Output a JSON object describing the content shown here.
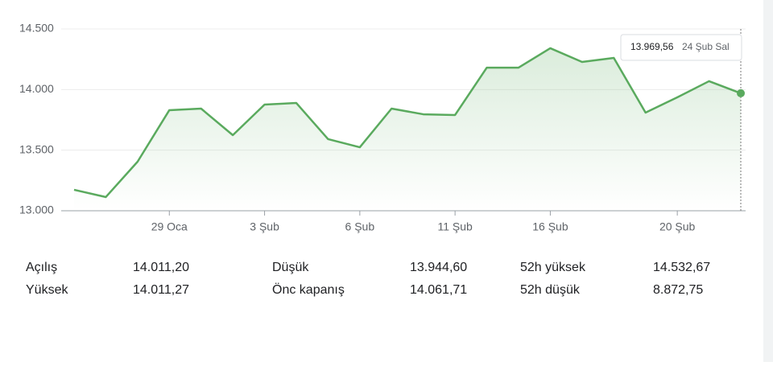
{
  "chart_data": {
    "type": "line",
    "categories": [
      null,
      null,
      null,
      "29 Oca",
      null,
      null,
      "3 Şub",
      null,
      null,
      "6 Şub",
      null,
      null,
      "11 Şub",
      null,
      null,
      "16 Şub",
      null,
      null,
      null,
      "20 Şub",
      null,
      null
    ],
    "values": [
      13173,
      13113,
      13405,
      13830,
      13843,
      13624,
      13876,
      13889,
      13591,
      13524,
      13843,
      13796,
      13790,
      14181,
      14181,
      14341,
      14228,
      14261,
      13810,
      13936,
      14069,
      13969.56
    ],
    "color": "#5aaa5e",
    "ylim": [
      13000,
      14500
    ],
    "yticks": [
      {
        "value": 13000,
        "label": "13.000"
      },
      {
        "value": 13500,
        "label": "13.500"
      },
      {
        "value": 14000,
        "label": "14.000"
      },
      {
        "value": 14500,
        "label": "14.500"
      }
    ],
    "grid": true,
    "tooltip": {
      "value": "13.969,56",
      "date": "24 Şub Sal"
    }
  },
  "stats": [
    {
      "label": "Açılış",
      "value": "14.011,20"
    },
    {
      "label": "Yüksek",
      "value": "14.011,27"
    },
    {
      "label": "Düşük",
      "value": "13.944,60"
    },
    {
      "label": "Önc kapanış",
      "value": "14.061,71"
    },
    {
      "label": "52h yüksek",
      "value": "14.532,67"
    },
    {
      "label": "52h düşük",
      "value": "8.872,75"
    }
  ]
}
